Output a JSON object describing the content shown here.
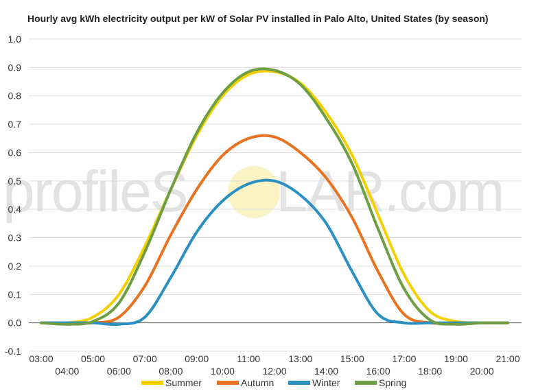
{
  "watermark": {
    "left": "profileS",
    "mid": "O",
    "right": "LAR.com"
  },
  "chart_data": {
    "type": "line",
    "title": "Hourly avg kWh electricity output per kW of Solar PV installed in Palo Alto, United States (by season)",
    "xlabel": "",
    "ylabel": "",
    "ylim": [
      -0.1,
      1.0
    ],
    "yticks": [
      "-0.1",
      "0.0",
      "0.1",
      "0.2",
      "0.3",
      "0.4",
      "0.5",
      "0.6",
      "0.7",
      "0.8",
      "0.9",
      "1.0"
    ],
    "x": [
      "03:00",
      "04:00",
      "05:00",
      "06:00",
      "07:00",
      "08:00",
      "09:00",
      "10:00",
      "11:00",
      "12:00",
      "13:00",
      "14:00",
      "15:00",
      "16:00",
      "17:00",
      "18:00",
      "19:00",
      "20:00",
      "21:00"
    ],
    "grid": true,
    "legend_position": "bottom",
    "series": [
      {
        "name": "Summer",
        "color": "#f5d000",
        "values": [
          0,
          0,
          0.02,
          0.1,
          0.27,
          0.47,
          0.66,
          0.8,
          0.875,
          0.885,
          0.845,
          0.74,
          0.59,
          0.38,
          0.17,
          0.04,
          0.005,
          0,
          0
        ]
      },
      {
        "name": "Autumn",
        "color": "#e8721f",
        "values": [
          0,
          0,
          0,
          0.02,
          0.13,
          0.31,
          0.47,
          0.59,
          0.65,
          0.655,
          0.6,
          0.51,
          0.37,
          0.18,
          0.03,
          0,
          0,
          0,
          0
        ]
      },
      {
        "name": "Winter",
        "color": "#2a8fc1",
        "values": [
          0,
          0,
          0,
          -0.005,
          0.02,
          0.16,
          0.32,
          0.43,
          0.49,
          0.5,
          0.45,
          0.35,
          0.18,
          0.03,
          0,
          0,
          0,
          0,
          0
        ]
      },
      {
        "name": "Spring",
        "color": "#6d9e44",
        "values": [
          0,
          -0.005,
          0.005,
          0.07,
          0.25,
          0.47,
          0.67,
          0.81,
          0.885,
          0.89,
          0.84,
          0.72,
          0.56,
          0.33,
          0.12,
          0.01,
          -0.005,
          0,
          0
        ]
      }
    ]
  }
}
